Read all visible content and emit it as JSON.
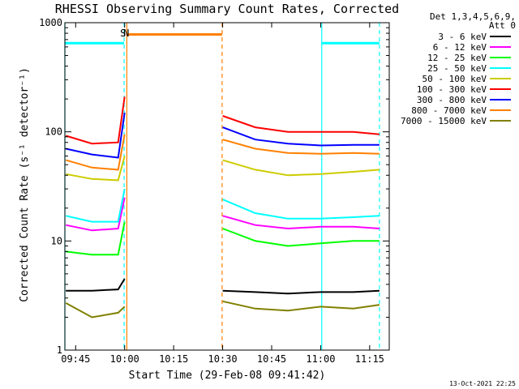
{
  "chart_data": {
    "type": "line",
    "title": "RHESSI Observing Summary Count Rates, Corrected",
    "xlabel": "Start Time (29-Feb-08 09:41:42)",
    "ylabel": "Corrected Count Rate (s⁻¹ detector⁻¹)",
    "y_scale": "log",
    "ylim": [
      1,
      1000
    ],
    "xlim": [
      "09:41:42",
      "11:21:00"
    ],
    "x_ticks": [
      "09:45",
      "10:00",
      "10:15",
      "10:30",
      "10:45",
      "11:00",
      "11:15"
    ],
    "y_ticks": [
      "1",
      "10",
      "100",
      "1000"
    ],
    "grid": false,
    "legend_position": "outside-right",
    "legend_header": [
      "Det 1,3,4,5,6,9,",
      "Att 0"
    ],
    "series": [
      {
        "name": "3 - 6 keV",
        "color": "#000000",
        "x": [
          "09:42",
          "09:50",
          "09:58",
          "10:00",
          "10:30",
          "10:40",
          "10:50",
          "11:00",
          "11:10",
          "11:18"
        ],
        "y": [
          3.5,
          3.5,
          3.6,
          4.5,
          3.5,
          3.4,
          3.3,
          3.4,
          3.4,
          3.5
        ]
      },
      {
        "name": "6 - 12 keV",
        "color": "#ff00ff",
        "x": [
          "09:42",
          "09:50",
          "09:58",
          "10:00",
          "10:30",
          "10:40",
          "10:50",
          "11:00",
          "11:10",
          "11:18"
        ],
        "y": [
          14,
          12.5,
          13,
          25,
          17,
          14,
          13,
          13.5,
          13.5,
          13
        ]
      },
      {
        "name": "12 - 25 keV",
        "color": "#00ff00",
        "x": [
          "09:42",
          "09:50",
          "09:58",
          "10:00",
          "10:30",
          "10:40",
          "10:50",
          "11:00",
          "11:10",
          "11:18"
        ],
        "y": [
          8,
          7.5,
          7.5,
          15,
          13,
          10,
          9,
          9.5,
          10,
          10
        ]
      },
      {
        "name": "25 - 50 keV",
        "color": "#00ffff",
        "x": [
          "09:42",
          "09:50",
          "09:58",
          "10:00",
          "10:30",
          "10:40",
          "10:50",
          "11:00",
          "11:10",
          "11:18"
        ],
        "y": [
          17,
          15,
          15,
          30,
          24,
          18,
          16,
          16,
          16.5,
          17
        ]
      },
      {
        "name": "50 - 100 keV",
        "color": "#cccc00",
        "x": [
          "09:42",
          "09:50",
          "09:58",
          "10:00",
          "10:30",
          "10:40",
          "10:50",
          "11:00",
          "11:10",
          "11:18"
        ],
        "y": [
          41,
          37,
          36,
          60,
          55,
          45,
          40,
          41,
          43,
          45
        ]
      },
      {
        "name": "100 - 300 keV",
        "color": "#ff0000",
        "x": [
          "09:42",
          "09:50",
          "09:58",
          "10:00",
          "10:30",
          "10:40",
          "10:50",
          "11:00",
          "11:10",
          "11:18"
        ],
        "y": [
          92,
          78,
          80,
          210,
          140,
          110,
          100,
          100,
          100,
          95
        ]
      },
      {
        "name": "300 - 800 keV",
        "color": "#0000ff",
        "x": [
          "09:42",
          "09:50",
          "09:58",
          "10:00",
          "10:30",
          "10:40",
          "10:50",
          "11:00",
          "11:10",
          "11:18"
        ],
        "y": [
          70,
          62,
          58,
          150,
          110,
          85,
          78,
          75,
          76,
          76
        ]
      },
      {
        "name": "800 - 7000 keV",
        "color": "#ff8000",
        "x": [
          "09:42",
          "09:50",
          "09:58",
          "10:00",
          "10:30",
          "10:40",
          "10:50",
          "11:00",
          "11:10",
          "11:18"
        ],
        "y": [
          55,
          47,
          45,
          95,
          85,
          70,
          64,
          63,
          64,
          63
        ]
      },
      {
        "name": "7000 - 15000 keV",
        "color": "#808000",
        "x": [
          "09:42",
          "09:50",
          "09:58",
          "10:00",
          "10:30",
          "10:40",
          "10:50",
          "11:00",
          "11:10",
          "11:18"
        ],
        "y": [
          2.7,
          2.0,
          2.2,
          2.5,
          2.8,
          2.4,
          2.3,
          2.5,
          2.4,
          2.6
        ]
      }
    ],
    "annotations": [
      {
        "text": "S",
        "color": "#ff8000",
        "x": "09:59:30"
      },
      {
        "text": "N",
        "color": "#00ffff",
        "x": "10:00:30"
      }
    ],
    "flag_bars": [
      {
        "name": "night",
        "color": "#00ffff",
        "intervals": [
          [
            "09:41:42",
            "09:59:50"
          ],
          [
            "11:00:20",
            "11:18:00"
          ]
        ],
        "level": 650
      },
      {
        "name": "saa",
        "color": "#ff8000",
        "intervals": [
          [
            "10:00:40",
            "10:29:50"
          ]
        ],
        "level": 780
      }
    ],
    "vertical_markers": [
      {
        "x": "09:41:42",
        "color": "#00ffff",
        "style": "solid"
      },
      {
        "x": "09:59:50",
        "color": "#00ffff",
        "style": "dashed"
      },
      {
        "x": "10:00:40",
        "color": "#ff8000",
        "style": "solid"
      },
      {
        "x": "10:29:50",
        "color": "#ff8000",
        "style": "dashed"
      },
      {
        "x": "11:00:20",
        "color": "#00ffff",
        "style": "solid"
      },
      {
        "x": "11:18:00",
        "color": "#00ffff",
        "style": "dashed"
      }
    ],
    "timestamp": "13-Oct-2021 22:25"
  }
}
